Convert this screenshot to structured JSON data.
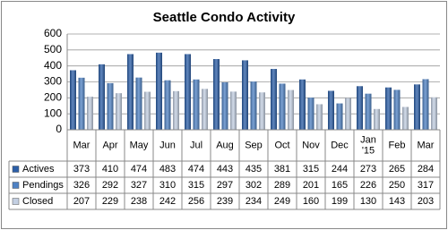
{
  "chart_data": {
    "type": "bar",
    "title": "Seattle Condo Activity",
    "categories": [
      "Mar",
      "Apr",
      "May",
      "Jun",
      "Jul",
      "Aug",
      "Sep",
      "Oct",
      "Nov",
      "Dec",
      "Jan '15",
      "Feb",
      "Mar"
    ],
    "series": [
      {
        "name": "Actives",
        "color": "#2b5ea7",
        "values": [
          373,
          410,
          474,
          483,
          474,
          443,
          435,
          381,
          315,
          244,
          273,
          265,
          284
        ]
      },
      {
        "name": "Pendings",
        "color": "#4f82c4",
        "values": [
          326,
          292,
          327,
          310,
          315,
          297,
          302,
          289,
          201,
          165,
          226,
          250,
          317
        ]
      },
      {
        "name": "Closed",
        "color": "#c3cfe2",
        "values": [
          207,
          229,
          238,
          242,
          256,
          239,
          234,
          249,
          160,
          199,
          130,
          143,
          203
        ]
      }
    ],
    "ylim": [
      0,
      600
    ],
    "yticks": [
      0,
      100,
      200,
      300,
      400,
      500,
      600
    ],
    "grid": true
  }
}
